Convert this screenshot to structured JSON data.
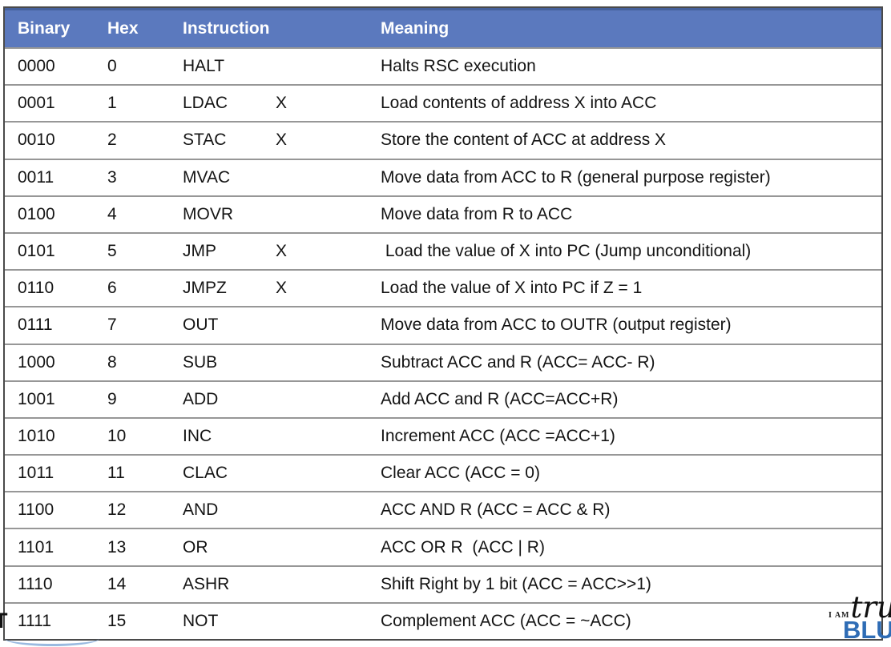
{
  "colors": {
    "header_bg": "#5b79be",
    "header_text": "#ffffff",
    "grid_line": "#979797",
    "outer_border": "#4a4a4a",
    "logo_blue": "#2e6cb5"
  },
  "table": {
    "headers": {
      "binary": "Binary",
      "hex": "Hex",
      "instruction": "Instruction",
      "meaning": "Meaning"
    },
    "rows": [
      {
        "binary": "0000",
        "hex": "0",
        "mnemonic": "HALT",
        "operand": "",
        "meaning": "Halts RSC execution"
      },
      {
        "binary": "0001",
        "hex": "1",
        "mnemonic": "LDAC",
        "operand": "X",
        "meaning": "Load contents of address X into ACC"
      },
      {
        "binary": "0010",
        "hex": "2",
        "mnemonic": "STAC",
        "operand": "X",
        "meaning": "Store the content of ACC at address X"
      },
      {
        "binary": "0011",
        "hex": "3",
        "mnemonic": "MVAC",
        "operand": "",
        "meaning": "Move data from ACC to R (general purpose register)"
      },
      {
        "binary": "0100",
        "hex": "4",
        "mnemonic": "MOVR",
        "operand": "",
        "meaning": "Move data from R to ACC"
      },
      {
        "binary": "0101",
        "hex": "5",
        "mnemonic": "JMP",
        "operand": "X",
        "meaning": " Load the value of X into PC (Jump unconditional)"
      },
      {
        "binary": "0110",
        "hex": "6",
        "mnemonic": "JMPZ",
        "operand": "X",
        "meaning": "Load the value of X into PC if Z = 1"
      },
      {
        "binary": "0111",
        "hex": "7",
        "mnemonic": "OUT",
        "operand": "",
        "meaning": "Move data from ACC to OUTR (output register)"
      },
      {
        "binary": "1000",
        "hex": "8",
        "mnemonic": "SUB",
        "operand": "",
        "meaning": "Subtract ACC and R (ACC= ACC- R)"
      },
      {
        "binary": "1001",
        "hex": "9",
        "mnemonic": "ADD",
        "operand": "",
        "meaning": "Add ACC and R (ACC=ACC+R)"
      },
      {
        "binary": "1010",
        "hex": "10",
        "mnemonic": "INC",
        "operand": "",
        "meaning": "Increment ACC (ACC =ACC+1)"
      },
      {
        "binary": "1011",
        "hex": "11",
        "mnemonic": "CLAC",
        "operand": "",
        "meaning": "Clear ACC (ACC = 0)"
      },
      {
        "binary": "1100",
        "hex": "12",
        "mnemonic": "AND",
        "operand": "",
        "meaning": "ACC AND R (ACC = ACC & R)"
      },
      {
        "binary": "1101",
        "hex": "13",
        "mnemonic": "OR",
        "operand": "",
        "meaning": "ACC OR R  (ACC | R)"
      },
      {
        "binary": "1110",
        "hex": "14",
        "mnemonic": "ASHR",
        "operand": "",
        "meaning": "Shift Right by 1 bit (ACC = ACC>>1)"
      },
      {
        "binary": "1111",
        "hex": "15",
        "mnemonic": "NOT",
        "operand": "",
        "meaning": "Complement ACC (ACC = ~ACC)"
      }
    ]
  },
  "fragments": {
    "bottom_left_text": "T"
  },
  "watermark": {
    "prefix": "I AM",
    "script": "true",
    "word": "BLUE"
  }
}
